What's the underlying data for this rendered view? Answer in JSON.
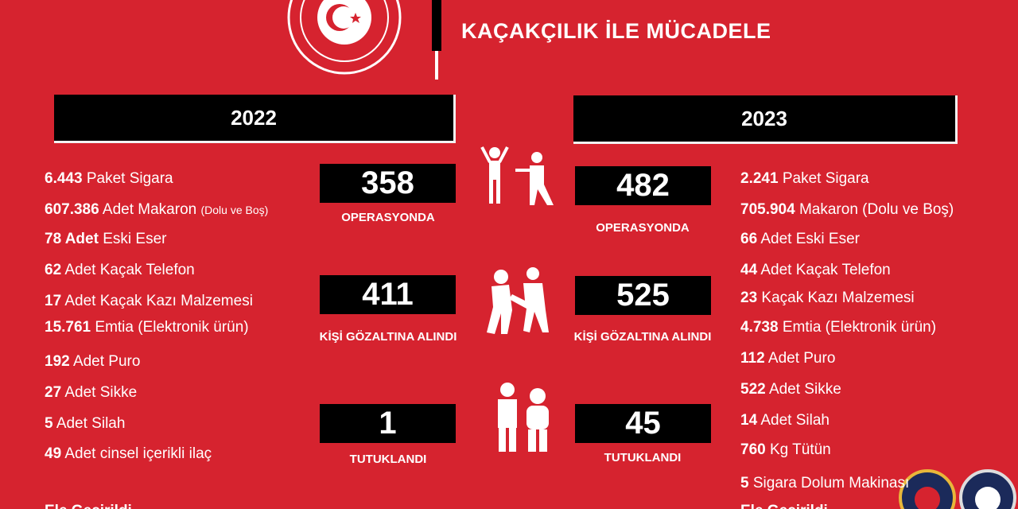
{
  "header": {
    "title": "KAÇAKÇILIK İLE MÜCADELE"
  },
  "columns": [
    {
      "year": "2022",
      "items": [
        {
          "number": "6.443",
          "text": "Paket Sigara"
        },
        {
          "number": "607.386",
          "text": "Adet Makaron",
          "note": "(Dolu ve Boş)"
        },
        {
          "number": "78 Adet",
          "text": "Eski Eser"
        },
        {
          "number": "62",
          "text": "Adet Kaçak Telefon"
        },
        {
          "number": "17",
          "text": "Adet Kaçak Kazı Malzemesi"
        },
        {
          "number": "15.761",
          "text": "Emtia (Elektronik ürün)"
        },
        {
          "number": "192",
          "text": "Adet Puro"
        },
        {
          "number": "27",
          "text": "Adet Sikke"
        },
        {
          "number": "5",
          "text": "Adet Silah"
        },
        {
          "number": "49",
          "text": "Adet cinsel içerikli ilaç"
        }
      ],
      "footer": "Ele Geçirildi",
      "stats": [
        {
          "value": "358",
          "label": "OPERASYONDA"
        },
        {
          "value": "411",
          "label": "KİŞİ GÖZALTINA ALINDI"
        },
        {
          "value": "1",
          "label": "TUTUKLANDI"
        }
      ]
    },
    {
      "year": "2023",
      "items": [
        {
          "number": "2.241",
          "text": "Paket Sigara"
        },
        {
          "number": "705.904",
          "text": "Makaron (Dolu ve Boş)"
        },
        {
          "number": "66",
          "text": "Adet Eski Eser"
        },
        {
          "number": "44",
          "text": "Adet Kaçak Telefon"
        },
        {
          "number": "23",
          "text": "Kaçak Kazı Malzemesi"
        },
        {
          "number": "4.738",
          "text": "Emtia (Elektronik ürün)"
        },
        {
          "number": "112",
          "text": "Adet Puro"
        },
        {
          "number": "522",
          "text": "Adet Sikke"
        },
        {
          "number": "14",
          "text": "Adet Silah"
        },
        {
          "number": "760",
          "text": "Kg Tütün"
        },
        {
          "number": "5",
          "text": "Sigara Dolum Makinası"
        }
      ],
      "footer": "Ele Geçirildi",
      "stats": [
        {
          "value": "482",
          "label": "OPERASYONDA"
        },
        {
          "value": "525",
          "label": "KİŞİ GÖZALTINA ALINDI"
        },
        {
          "value": "45",
          "label": "TUTUKLANDI"
        }
      ]
    }
  ]
}
